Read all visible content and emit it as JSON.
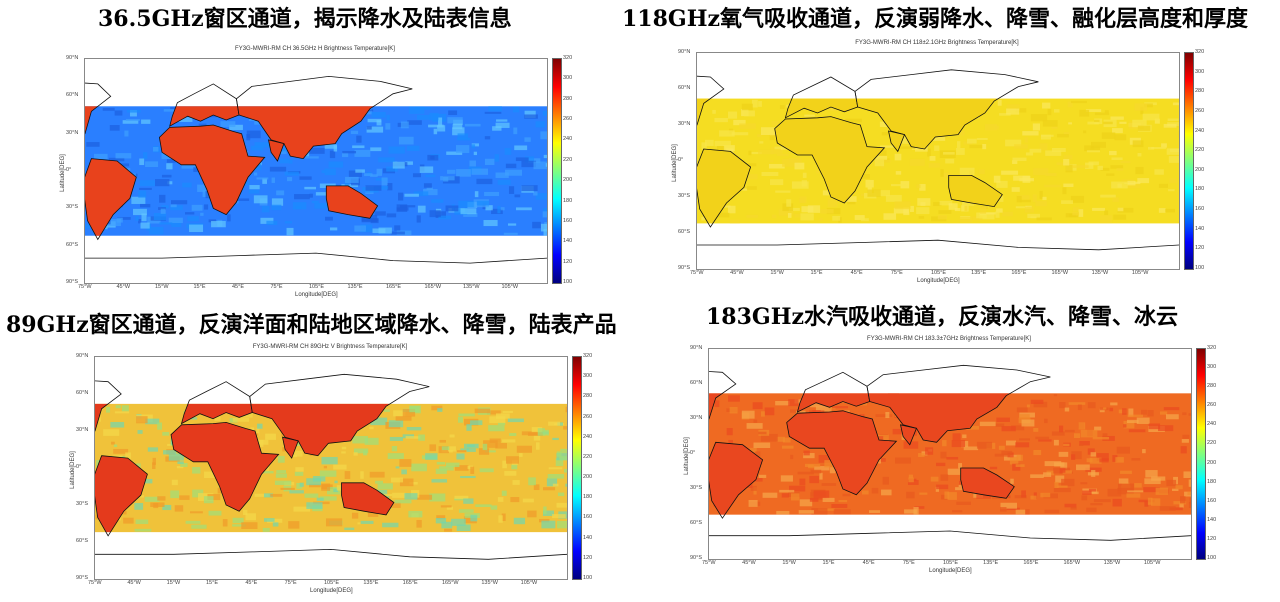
{
  "headings": [
    "36.5GHz窗区通道，揭示降水及陆表信息",
    "118GHz氧气吸收通道，反演弱降水、降雪、融化层高度和厚度",
    "89GHz窗区通道，反演洋面和陆地区域降水、降雪，陆表产品",
    "183GHz水汽吸收通道，反演水汽、降雪、冰云"
  ],
  "panels": [
    {
      "plot_title": "FY3G-MWRI-RM CH 36.5GHz H Brightness Temperature[K]",
      "palette": "jet-cool",
      "ocean_color": "#2a7fff",
      "land_color": "#e8421c"
    },
    {
      "plot_title": "FY3G-MWRI-RM CH 118±2.1GHz Brightness Temperature[K]",
      "palette": "yellow",
      "ocean_color": "#f5dd22",
      "land_color": "#f2d21a"
    },
    {
      "plot_title": "FY3G-MWRI-RM CH 89GHz V Brightness Temperature[K]",
      "palette": "jet-warm",
      "ocean_color": "#f0c23a",
      "land_color": "#e43a1c"
    },
    {
      "plot_title": "FY3G-MWRI-RM CH 183.3±7GHz Brightness Temperature[K]",
      "palette": "jet-hot",
      "ocean_color": "#ef6a22",
      "land_color": "#e9471f"
    }
  ],
  "axes": {
    "xlabel": "Longitude[DEG]",
    "ylabel": "Latitude[DEG]",
    "lat_ticks": [
      "90°N",
      "60°N",
      "30°N",
      "0°",
      "30°S",
      "60°S",
      "90°S"
    ],
    "lon_ticks": [
      "75°W",
      "45°W",
      "15°W",
      "15°E",
      "45°E",
      "75°E",
      "105°E",
      "135°E",
      "165°E",
      "165°W",
      "135°W",
      "105°W"
    ],
    "colorbar_ticks": [
      "320",
      "300",
      "280",
      "260",
      "240",
      "220",
      "200",
      "180",
      "160",
      "140",
      "120",
      "100"
    ]
  }
}
